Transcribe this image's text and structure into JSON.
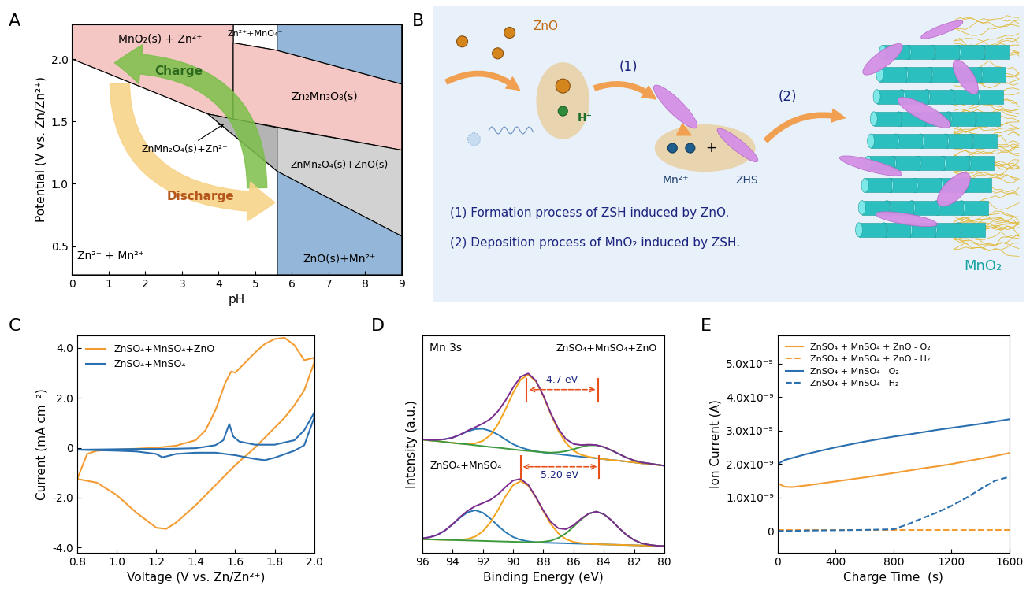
{
  "chart_data": [
    {
      "panel_label": "A",
      "type": "phase_diagram",
      "x_label": "pH",
      "y_label": "Potential (V vs. Zn/Zn²⁺)",
      "xlim": [
        0,
        9
      ],
      "ylim": [
        0.27,
        2.28
      ],
      "xticks": [
        0,
        1,
        2,
        3,
        4,
        5,
        6,
        7,
        8,
        9
      ],
      "yticks": [
        0.5,
        1.0,
        1.5,
        2.0
      ],
      "regions": [
        {
          "name": "Zn²⁺+MnO₄⁻",
          "color": "#ffffff",
          "polygon": [
            [
              4.4,
              2.28
            ],
            [
              5.6,
              2.28
            ],
            [
              5.6,
              2.07
            ],
            [
              4.4,
              2.13
            ]
          ]
        },
        {
          "name": "MnO₂(s) + Zn²⁺",
          "color": "#f4c6c4",
          "polygon": [
            [
              0,
              2.28
            ],
            [
              4.4,
              2.28
            ],
            [
              4.4,
              1.52
            ],
            [
              3.7,
              1.56
            ],
            [
              0,
              2.0
            ]
          ]
        },
        {
          "name": "Zn₂Mn₃O₈(s)",
          "color": "#f4c6c4",
          "polygon": [
            [
              4.4,
              2.13
            ],
            [
              5.6,
              2.07
            ],
            [
              9,
              1.8
            ],
            [
              9,
              1.27
            ],
            [
              4.4,
              1.52
            ]
          ]
        },
        {
          "name": "ZnMn₂O₄(s)+Zn²⁺",
          "color": "#b4b4b4",
          "polygon": [
            [
              3.7,
              1.56
            ],
            [
              5.6,
              1.45
            ],
            [
              5.6,
              1.1
            ]
          ]
        },
        {
          "name": "ZnMn₂O₄(s)+ZnO(s)",
          "color": "#d2d2d2",
          "polygon": [
            [
              5.6,
              1.45
            ],
            [
              9,
              1.27
            ],
            [
              9,
              0.58
            ],
            [
              5.6,
              1.1
            ]
          ]
        },
        {
          "name": "ZnO(s)+Mn²⁺",
          "color": "#94b6d8",
          "polygon": [
            [
              5.6,
              1.1
            ],
            [
              9,
              0.58
            ],
            [
              9,
              0.27
            ],
            [
              5.6,
              0.27
            ]
          ]
        },
        {
          "color": "#94b6d8",
          "polygon": [
            [
              5.6,
              2.28
            ],
            [
              9,
              2.28
            ],
            [
              9,
              1.8
            ],
            [
              5.6,
              2.07
            ]
          ]
        },
        {
          "name": "Zn²⁺ + Mn²⁺",
          "color": "#ffffff",
          "polygon": [
            [
              0,
              2.0
            ],
            [
              3.7,
              1.56
            ],
            [
              5.6,
              1.1
            ],
            [
              5.6,
              0.27
            ],
            [
              0,
              0.27
            ]
          ]
        }
      ],
      "arrows": [
        {
          "label": "Charge",
          "color": "#7cbf4a"
        },
        {
          "label": "Discharge",
          "color": "#f8d48a"
        }
      ]
    },
    {
      "panel_label": "C",
      "type": "line",
      "x_label": "Voltage (V vs. Zn/Zn²⁺)",
      "y_label": "Current (mA cm⁻²)",
      "xlim": [
        0.8,
        2.0
      ],
      "ylim": [
        -4.2,
        4.5
      ],
      "xticks": [
        0.8,
        1.0,
        1.2,
        1.4,
        1.6,
        1.8,
        2.0
      ],
      "yticks": [
        -4.0,
        -2.0,
        0,
        2.0,
        4.0
      ],
      "legend": "upper left",
      "series": [
        {
          "name": "ZnSO₄+MnSO₄+ZnO",
          "color": "#f39c34",
          "x": [
            0.8,
            0.85,
            0.9,
            1.0,
            1.1,
            1.2,
            1.3,
            1.4,
            1.45,
            1.5,
            1.55,
            1.58,
            1.6,
            1.65,
            1.7,
            1.75,
            1.8,
            1.85,
            1.9,
            1.95,
            2.0,
            2.0,
            1.95,
            1.9,
            1.85,
            1.8,
            1.7,
            1.6,
            1.5,
            1.4,
            1.3,
            1.25,
            1.2,
            1.1,
            1.0,
            0.9,
            0.8
          ],
          "values": [
            -1.25,
            -0.25,
            -0.12,
            -0.08,
            -0.04,
            0.0,
            0.08,
            0.3,
            0.7,
            1.5,
            2.6,
            3.05,
            3.0,
            3.4,
            3.8,
            4.15,
            4.35,
            4.4,
            4.1,
            3.5,
            3.6,
            3.4,
            2.3,
            1.7,
            1.2,
            0.8,
            0.0,
            -0.7,
            -1.5,
            -2.3,
            -3.0,
            -3.25,
            -3.2,
            -2.6,
            -1.9,
            -1.4,
            -1.25
          ]
        },
        {
          "name": "ZnSO₄+MnSO₄",
          "color": "#2a6fb0",
          "x": [
            0.8,
            0.9,
            1.0,
            1.1,
            1.2,
            1.3,
            1.4,
            1.5,
            1.54,
            1.57,
            1.59,
            1.62,
            1.7,
            1.8,
            1.9,
            1.95,
            2.0,
            2.0,
            1.95,
            1.9,
            1.8,
            1.75,
            1.7,
            1.6,
            1.5,
            1.4,
            1.3,
            1.25,
            1.23,
            1.2,
            1.1,
            1.0,
            0.9,
            0.8
          ],
          "values": [
            -0.08,
            -0.07,
            -0.06,
            -0.05,
            -0.05,
            -0.04,
            -0.02,
            0.1,
            0.3,
            0.95,
            0.45,
            0.25,
            0.12,
            0.12,
            0.3,
            0.7,
            1.4,
            1.2,
            0.1,
            -0.12,
            -0.4,
            -0.5,
            -0.45,
            -0.3,
            -0.2,
            -0.2,
            -0.25,
            -0.35,
            -0.38,
            -0.25,
            -0.15,
            -0.12,
            -0.1,
            -0.08
          ]
        }
      ]
    },
    {
      "panel_label": "D",
      "type": "line",
      "title": "Mn 3s",
      "x_label": "Binding Energy (eV)",
      "y_label": "Intensity (a.u.)",
      "xlim": [
        96,
        80
      ],
      "ylim": [
        0,
        100
      ],
      "xticks": [
        96,
        94,
        92,
        90,
        88,
        86,
        84,
        82,
        80
      ],
      "tick_labels": "x",
      "x": [
        96,
        95.5,
        95,
        94.5,
        94,
        93.5,
        93,
        92.5,
        92,
        91.5,
        91,
        90.5,
        90,
        89.5,
        89,
        88.5,
        88,
        87.5,
        87,
        86.5,
        86,
        85.5,
        85,
        84.5,
        84,
        83.5,
        83,
        82.5,
        82,
        81.5,
        81,
        80.5,
        80
      ],
      "spectra": [
        {
          "name": "ZnSO₄+MnSO₄+ZnO",
          "splitting": {
            "label": "4.7 eV",
            "from": 84.4,
            "to": 89.1
          },
          "series": [
            {
              "color": "#2878b5",
              "values": [
                52.1,
                51.8,
                51.9,
                52.2,
                52.9,
                54.2,
                55.8,
                56.8,
                57.0,
                56.0,
                54.3,
                52.0,
                49.9,
                48.4,
                47.4,
                46.6,
                46.1,
                45.6,
                45.3,
                44.9,
                44.5,
                44.1,
                43.8,
                43.4,
                43.0,
                42.6,
                42.3,
                41.9,
                41.5,
                41.1,
                40.8,
                40.4,
                40.0
              ]
            },
            {
              "color": "#f5a31a",
              "values": [
                52.0,
                51.6,
                51.3,
                50.9,
                50.5,
                50.2,
                50.1,
                50.3,
                51.4,
                54.1,
                59.0,
                65.9,
                73.5,
                79.6,
                81.8,
                78.9,
                72.0,
                63.6,
                56.0,
                50.4,
                46.9,
                45.0,
                44.1,
                43.5,
                43.0,
                42.6,
                42.3,
                41.9,
                41.5,
                41.1,
                40.8,
                40.4,
                40.0
              ]
            },
            {
              "color": "#3c9a3c",
              "values": [
                52.0,
                51.6,
                51.3,
                50.9,
                50.5,
                50.1,
                49.8,
                49.4,
                49.0,
                48.6,
                48.3,
                47.9,
                47.5,
                47.1,
                46.8,
                46.5,
                46.2,
                46.0,
                46.2,
                46.7,
                47.6,
                48.6,
                49.4,
                49.4,
                48.6,
                47.1,
                45.4,
                43.7,
                42.4,
                41.5,
                41.0,
                40.5,
                40.0
              ]
            },
            {
              "color": "#7b2d8e",
              "values": [
                52.1,
                51.8,
                51.9,
                52.2,
                52.9,
                54.3,
                56.1,
                57.7,
                59.4,
                61.5,
                65.0,
                70.0,
                75.9,
                80.9,
                82.4,
                79.2,
                72.3,
                64.0,
                56.9,
                52.2,
                50.0,
                49.5,
                49.7,
                49.5,
                48.6,
                47.1,
                45.4,
                43.7,
                42.4,
                41.5,
                41.0,
                40.5,
                40.0
              ]
            }
          ]
        },
        {
          "name": "ZnSO₄+MnSO₄",
          "splitting": {
            "label": "5.20 eV",
            "from": 84.3,
            "to": 89.5
          },
          "series": [
            {
              "color": "#2878b5",
              "values": [
                6.6,
                7.1,
                8.2,
                10.2,
                13.0,
                16.1,
                18.6,
                19.5,
                18.4,
                15.7,
                12.4,
                9.4,
                7.2,
                5.9,
                5.2,
                4.8,
                4.6,
                4.5,
                4.4,
                4.3,
                4.2,
                4.1,
                4.0,
                3.9,
                3.8,
                3.7,
                3.6,
                3.5,
                3.4,
                3.3,
                3.2,
                3.1,
                3.0
              ]
            },
            {
              "color": "#f5a31a",
              "values": [
                6.2,
                6.1,
                6.0,
                5.9,
                5.9,
                6.0,
                6.3,
                7.4,
                9.8,
                13.9,
                19.6,
                25.9,
                31.0,
                32.9,
                30.8,
                25.5,
                19.0,
                13.1,
                8.8,
                6.2,
                4.9,
                4.4,
                4.1,
                3.9,
                3.8,
                3.7,
                3.6,
                3.5,
                3.4,
                3.3,
                3.2,
                3.1,
                3.0
              ]
            },
            {
              "color": "#3c9a3c",
              "values": [
                6.2,
                6.1,
                6.0,
                5.9,
                5.8,
                5.7,
                5.6,
                5.5,
                5.4,
                5.3,
                5.2,
                5.1,
                5.0,
                4.9,
                4.8,
                4.8,
                5.0,
                5.5,
                6.8,
                8.9,
                11.9,
                15.3,
                17.9,
                18.9,
                17.7,
                14.9,
                11.3,
                8.1,
                5.8,
                4.3,
                3.6,
                3.2,
                3.0
              ]
            },
            {
              "color": "#7b2d8e",
              "values": [
                6.6,
                7.1,
                8.2,
                10.2,
                13.1,
                16.4,
                19.3,
                21.4,
                22.8,
                24.3,
                26.8,
                30.2,
                33.2,
                33.9,
                31.2,
                25.7,
                19.4,
                14.1,
                11.2,
                10.8,
                12.6,
                15.6,
                18.0,
                18.9,
                17.7,
                14.9,
                11.3,
                8.1,
                5.8,
                4.3,
                3.6,
                3.2,
                3.0
              ]
            }
          ]
        }
      ]
    },
    {
      "panel_label": "E",
      "type": "line",
      "x_label": "Charge Time  (s)",
      "y_label": "Ion Current (A)",
      "xlim": [
        0,
        1600
      ],
      "ylim": [
        -6.5e-10,
        5.85e-09
      ],
      "xticks": [
        0,
        400,
        800,
        1200,
        1600
      ],
      "yticks": [
        0,
        {
          "value": 1e-09,
          "label": "1.0x10⁻⁹"
        },
        {
          "value": 2e-09,
          "label": "2.0x10⁻⁹"
        },
        {
          "value": 3e-09,
          "label": "3.0x10⁻⁹"
        },
        {
          "value": 4e-09,
          "label": "4.0x10⁻⁹"
        },
        {
          "value": 5e-09,
          "label": "5.0x10⁻⁹"
        }
      ],
      "legend": "upper left",
      "x": [
        0,
        50,
        100,
        200,
        400,
        600,
        800,
        900,
        1000,
        1100,
        1200,
        1300,
        1400,
        1500,
        1600
      ],
      "series": [
        {
          "name": "ZnSO₄ + MnSO₄ + ZnO - O₂",
          "color": "#f39c34",
          "line_style": "solid",
          "values": [
            1.42e-09,
            1.32e-09,
            1.31e-09,
            1.36e-09,
            1.48e-09,
            1.6e-09,
            1.73e-09,
            1.8e-09,
            1.87e-09,
            1.93e-09,
            2e-09,
            2.08e-09,
            2.16e-09,
            2.24e-09,
            2.33e-09
          ]
        },
        {
          "name": "ZnSO₄ + MnSO₄ + ZnO - H₂",
          "color": "#f39c34",
          "line_style": "dashed",
          "values": [
            2e-11,
            2e-11,
            2e-11,
            2e-11,
            2e-11,
            2e-11,
            2e-11,
            2e-11,
            2e-11,
            2e-11,
            2e-11,
            2e-11,
            2e-11,
            2e-11,
            2e-11
          ]
        },
        {
          "name": "ZnSO₄ + MnSO₄ - O₂",
          "color": "#2a6fb0",
          "line_style": "solid",
          "values": [
            2e-09,
            2.12e-09,
            2.18e-09,
            2.3e-09,
            2.5e-09,
            2.67e-09,
            2.82e-09,
            2.88e-09,
            2.95e-09,
            3.02e-09,
            3.08e-09,
            3.14e-09,
            3.2e-09,
            3.27e-09,
            3.34e-09
          ]
        },
        {
          "name": "ZnSO₄ + MnSO₄ - H₂",
          "color": "#2a6fb0",
          "line_style": "dashed",
          "values": [
            0.0,
            0.0,
            0.0,
            1e-11,
            2e-11,
            3e-11,
            5e-11,
            2e-10,
            3.8e-10,
            5.5e-10,
            7.5e-10,
            9.8e-10,
            1.25e-09,
            1.5e-09,
            1.62e-09
          ]
        }
      ]
    }
  ],
  "diagram": {
    "panel_label": "B",
    "labels": {
      "zno": "ZnO",
      "proton": "H⁺",
      "step1": "(1)",
      "step2": "(2)",
      "mn": "Mn²⁺",
      "plus": "+",
      "zhs": "ZHS",
      "product": "MnO₂"
    },
    "captions": [
      "(1) Formation process of ZSH induced by ZnO.",
      "(2) Deposition process of MnO₂ induced by ZSH."
    ]
  }
}
